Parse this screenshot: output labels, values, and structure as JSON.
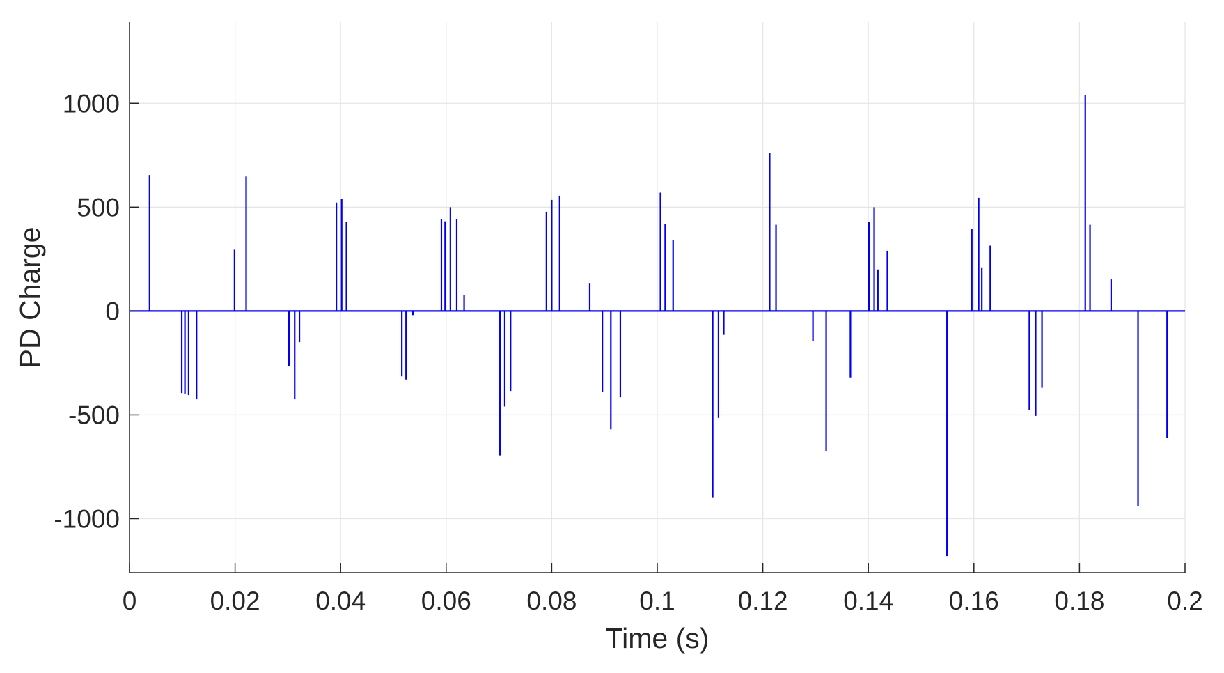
{
  "chart_data": {
    "type": "stem",
    "xlabel": "Time (s)",
    "ylabel": "PD Charge",
    "xlim": [
      0,
      0.2
    ],
    "ylim": [
      -1260,
      1390
    ],
    "xticks": [
      0,
      0.02,
      0.04,
      0.06,
      0.08,
      0.1,
      0.12,
      0.14,
      0.16,
      0.18,
      0.2
    ],
    "xtick_labels": [
      "0",
      "0.02",
      "0.04",
      "0.06",
      "0.08",
      "0.1",
      "0.12",
      "0.14",
      "0.16",
      "0.18",
      "0.2"
    ],
    "yticks": [
      1000,
      500,
      0,
      -500,
      -1000
    ],
    "ytick_labels": [
      "1000",
      "500",
      "0",
      "-500",
      "-1000"
    ],
    "grid": true,
    "series_color": "#0000ee",
    "grid_color": "#e6e6e6",
    "axis_color": "#262626",
    "points": [
      {
        "x": 0.0038,
        "y": 655
      },
      {
        "x": 0.0099,
        "y": -395
      },
      {
        "x": 0.0105,
        "y": -400
      },
      {
        "x": 0.0112,
        "y": -405
      },
      {
        "x": 0.0127,
        "y": -425
      },
      {
        "x": 0.0199,
        "y": 295
      },
      {
        "x": 0.0221,
        "y": 648
      },
      {
        "x": 0.0302,
        "y": -265
      },
      {
        "x": 0.0313,
        "y": -425
      },
      {
        "x": 0.0322,
        "y": -150
      },
      {
        "x": 0.0392,
        "y": 522
      },
      {
        "x": 0.0402,
        "y": 538
      },
      {
        "x": 0.0411,
        "y": 428
      },
      {
        "x": 0.0516,
        "y": -315
      },
      {
        "x": 0.0524,
        "y": -330
      },
      {
        "x": 0.0537,
        "y": -20
      },
      {
        "x": 0.0591,
        "y": 442
      },
      {
        "x": 0.0598,
        "y": 432
      },
      {
        "x": 0.0608,
        "y": 500
      },
      {
        "x": 0.062,
        "y": 442
      },
      {
        "x": 0.0634,
        "y": 75
      },
      {
        "x": 0.0702,
        "y": -695
      },
      {
        "x": 0.0711,
        "y": -460
      },
      {
        "x": 0.0722,
        "y": -385
      },
      {
        "x": 0.079,
        "y": 478
      },
      {
        "x": 0.08,
        "y": 535
      },
      {
        "x": 0.0815,
        "y": 555
      },
      {
        "x": 0.0872,
        "y": 135
      },
      {
        "x": 0.0896,
        "y": -390
      },
      {
        "x": 0.0912,
        "y": -570
      },
      {
        "x": 0.093,
        "y": -415
      },
      {
        "x": 0.1006,
        "y": 570
      },
      {
        "x": 0.1015,
        "y": 420
      },
      {
        "x": 0.103,
        "y": 340
      },
      {
        "x": 0.1105,
        "y": -900
      },
      {
        "x": 0.1116,
        "y": -515
      },
      {
        "x": 0.1126,
        "y": -115
      },
      {
        "x": 0.1213,
        "y": 760
      },
      {
        "x": 0.1225,
        "y": 415
      },
      {
        "x": 0.1295,
        "y": -145
      },
      {
        "x": 0.132,
        "y": -675
      },
      {
        "x": 0.1366,
        "y": -320
      },
      {
        "x": 0.1401,
        "y": 430
      },
      {
        "x": 0.1411,
        "y": 500
      },
      {
        "x": 0.1418,
        "y": 200
      },
      {
        "x": 0.1436,
        "y": 290
      },
      {
        "x": 0.1549,
        "y": -1180
      },
      {
        "x": 0.1596,
        "y": 395
      },
      {
        "x": 0.1609,
        "y": 545
      },
      {
        "x": 0.1615,
        "y": 210
      },
      {
        "x": 0.1631,
        "y": 315
      },
      {
        "x": 0.1705,
        "y": -475
      },
      {
        "x": 0.1717,
        "y": -505
      },
      {
        "x": 0.1729,
        "y": -370
      },
      {
        "x": 0.1811,
        "y": 1040
      },
      {
        "x": 0.182,
        "y": 415
      },
      {
        "x": 0.186,
        "y": 152
      },
      {
        "x": 0.1911,
        "y": -940
      },
      {
        "x": 0.1966,
        "y": -610
      }
    ]
  }
}
